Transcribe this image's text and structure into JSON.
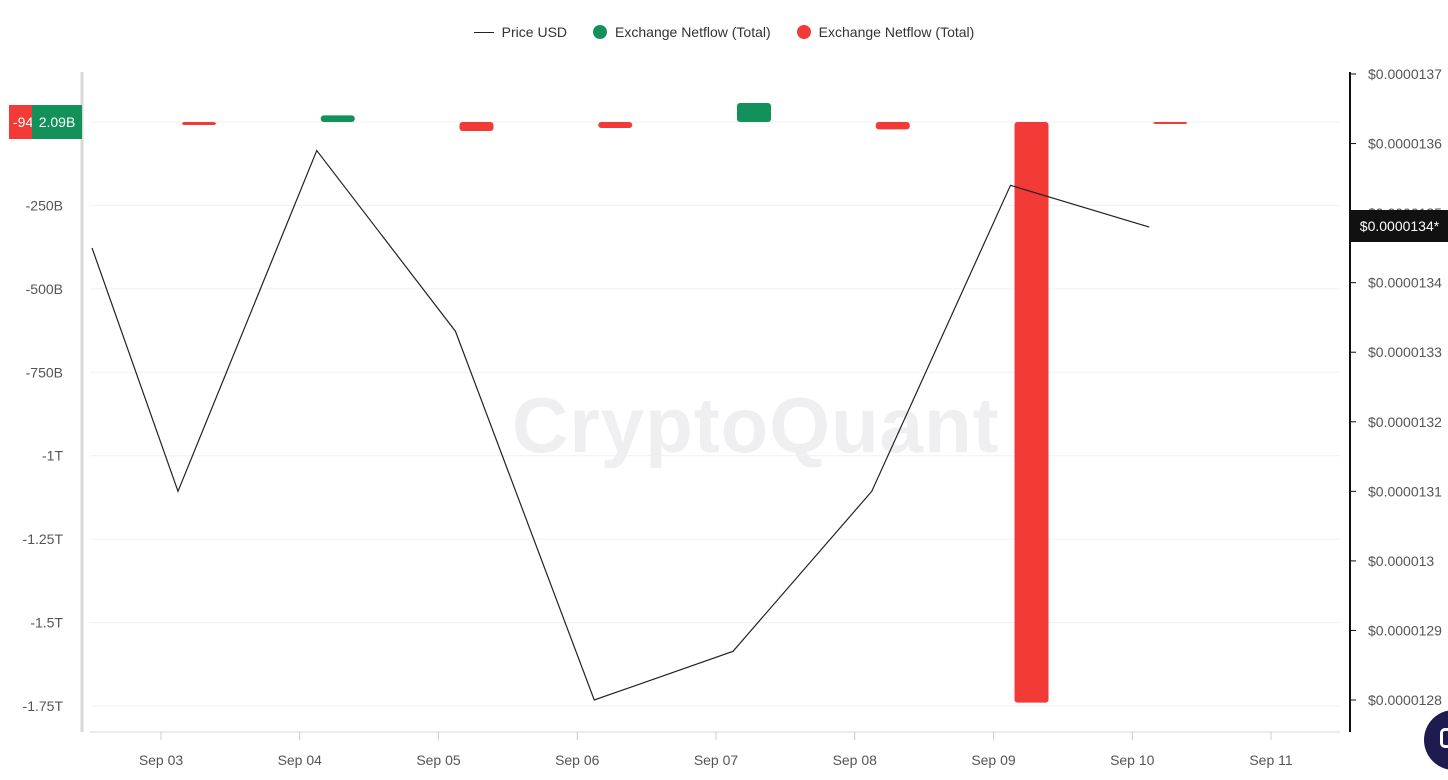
{
  "legend": [
    {
      "label": "Price USD",
      "kind": "line",
      "color": "#222222"
    },
    {
      "label": "Exchange Netflow (Total)",
      "kind": "dot",
      "color": "#12925a"
    },
    {
      "label": "Exchange Netflow (Total)",
      "kind": "dot",
      "color": "#f23a36"
    }
  ],
  "watermark": "CryptoQuant",
  "badges": {
    "price_current": "$0.0000134*",
    "netflow_negative": "-94",
    "netflow_positive": "2.09B"
  },
  "chart_data": {
    "type": "bar+line",
    "categories": [
      "Sep 03",
      "Sep 04",
      "Sep 05",
      "Sep 06",
      "Sep 07",
      "Sep 08",
      "Sep 09",
      "Sep 10",
      "Sep 11"
    ],
    "left_axis": {
      "ticks": [
        "-250B",
        "-500B",
        "-750B",
        "-1T",
        "-1.25T",
        "-1.5T",
        "-1.75T"
      ],
      "tick_values": [
        -250,
        -500,
        -750,
        -1000,
        -1250,
        -1500,
        -1750
      ],
      "unit": "B",
      "range": [
        -1750,
        60
      ]
    },
    "right_axis": {
      "ticks": [
        "$0.0000137",
        "$0.0000136",
        "$0.0000135",
        "$0.0000134",
        "$0.0000133",
        "$0.0000132",
        "$0.0000131",
        "$0.000013",
        "$0.0000129",
        "$0.0000128"
      ],
      "range": [
        1.28e-05,
        1.37e-05
      ]
    },
    "netflow_series": {
      "name": "Exchange Netflow (Total)",
      "x": [
        "Sep 03",
        "Sep 04",
        "Sep 05",
        "Sep 06",
        "Sep 07",
        "Sep 08",
        "Sep 09",
        "Sep 10"
      ],
      "values_billions": [
        -9,
        20,
        -27,
        -18,
        57,
        -22,
        -1740,
        -3
      ]
    },
    "price_series": {
      "name": "Price USD",
      "points": [
        {
          "x": "Sep 02",
          "y": 1.345e-05
        },
        {
          "x": "Sep 03",
          "y": 1.31e-05
        },
        {
          "x": "Sep 04",
          "y": 1.359e-05
        },
        {
          "x": "Sep 05",
          "y": 1.333e-05
        },
        {
          "x": "Sep 06",
          "y": 1.28e-05
        },
        {
          "x": "Sep 07",
          "y": 1.287e-05
        },
        {
          "x": "Sep 08",
          "y": 1.31e-05
        },
        {
          "x": "Sep 09",
          "y": 1.354e-05
        },
        {
          "x": "Sep 10",
          "y": 1.348e-05
        }
      ]
    },
    "grid": true,
    "legend_position": "top-center"
  }
}
